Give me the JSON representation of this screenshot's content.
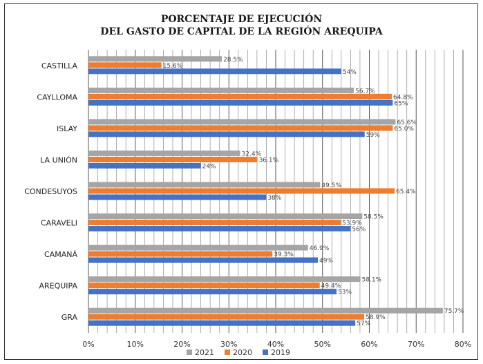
{
  "chart_data": {
    "type": "bar",
    "orientation": "horizontal",
    "title": [
      "PORCENTAJE DE EJECUCIÓN",
      "DEL GASTO DE CAPITAL DE LA REGIÓN AREQUIPA"
    ],
    "categories": [
      "CASTILLA",
      "CAYLLOMA",
      "ISLAY",
      "LA UNIÓN",
      "CONDESUYOS",
      "CARAVELI",
      "CAMANÁ",
      "AREQUIPA",
      "GRA"
    ],
    "series": [
      {
        "name": "2021",
        "color": "#a5a5a5",
        "values": [
          28.5,
          56.7,
          65.6,
          32.4,
          49.5,
          58.5,
          46.9,
          58.1,
          75.7
        ],
        "labels": [
          "28.5%",
          "56.7%",
          "65.6%",
          "32.4%",
          "49.5%",
          "58.5%",
          "46.9%",
          "58.1%",
          "75.7%"
        ]
      },
      {
        "name": "2020",
        "color": "#ed7d31",
        "values": [
          15.6,
          64.8,
          65.0,
          36.1,
          65.4,
          53.9,
          39.3,
          49.4,
          58.9
        ],
        "labels": [
          "15.6%",
          "64.8%",
          "65.0%",
          "36.1%",
          "65.4%",
          "53.9%",
          "39.3%",
          "49.4%",
          "58.9%"
        ]
      },
      {
        "name": "2019",
        "color": "#4472c4",
        "values": [
          54,
          65,
          59,
          24,
          38,
          56,
          49,
          53,
          57
        ],
        "labels": [
          "54%",
          "65%",
          "59%",
          "24%",
          "38%",
          "56%",
          "49%",
          "53%",
          "57%"
        ]
      }
    ],
    "xlim": [
      0,
      80
    ],
    "xticks": [
      "0%",
      "10%",
      "20%",
      "30%",
      "40%",
      "50%",
      "60%",
      "70%",
      "80%"
    ],
    "legend_position": "bottom",
    "grid": true
  }
}
